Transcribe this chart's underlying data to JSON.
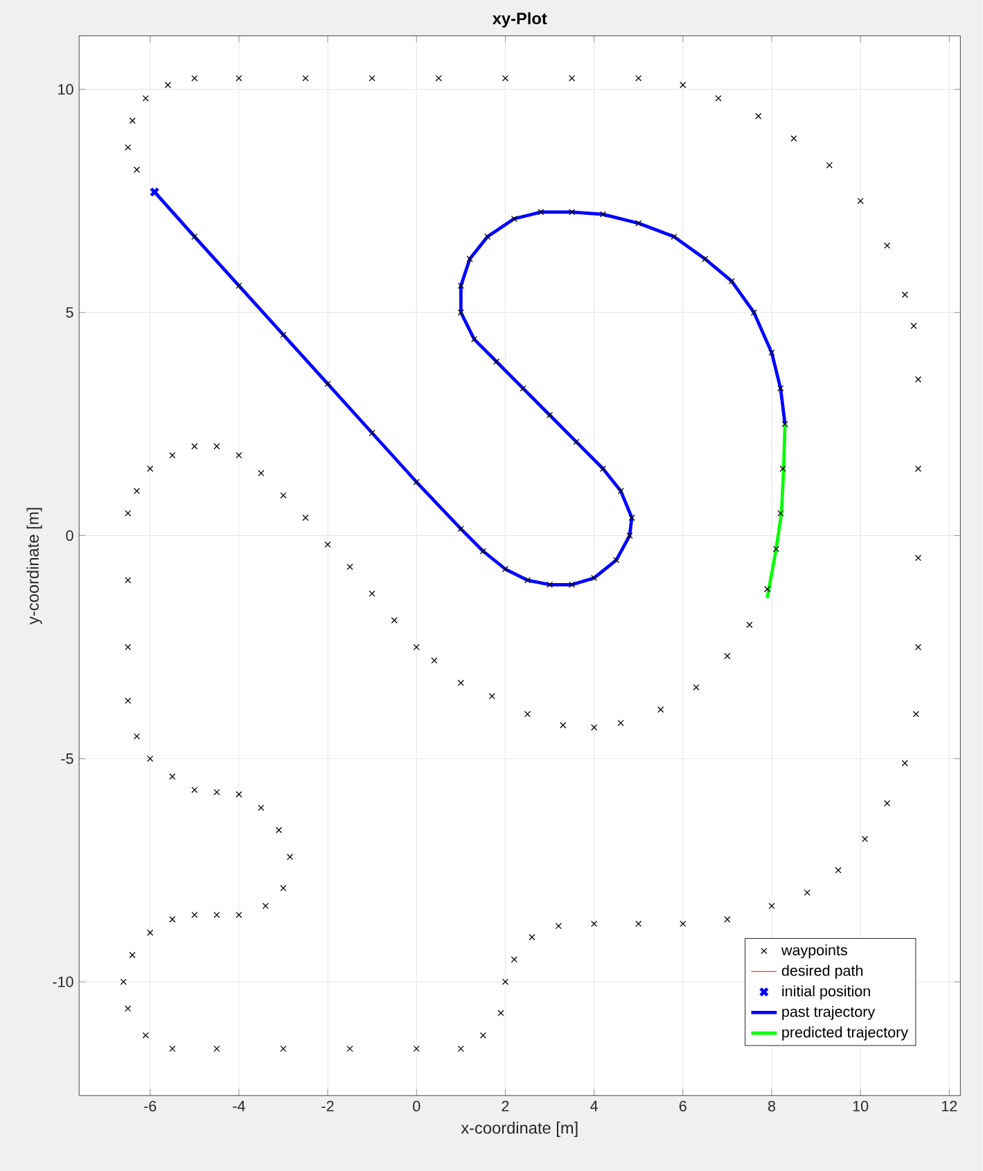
{
  "chart_data": {
    "type": "line",
    "title": "xy-Plot",
    "xlabel": "x-coordinate [m]",
    "ylabel": "y-coordinate [m]",
    "xlim": [
      -7.6,
      12.25
    ],
    "ylim": [
      -12.55,
      11.2
    ],
    "xticks": [
      -6,
      -4,
      -2,
      0,
      2,
      4,
      6,
      8,
      10,
      12
    ],
    "yticks": [
      -10,
      -5,
      0,
      5,
      10
    ],
    "grid": true,
    "legend": "bottom right",
    "series": [
      {
        "name": "waypoints",
        "type": "scatter",
        "marker": "cross",
        "color": "#000000",
        "x": [
          -5,
          -4,
          -3,
          -2,
          -1,
          0,
          1,
          1.5,
          2,
          2.5,
          3,
          3.5,
          4,
          4.5,
          4.8,
          4.85,
          4.6,
          4.2,
          3.6,
          3,
          2.4,
          1.8,
          1.3,
          1,
          1,
          1.2,
          1.6,
          2.2,
          2.8,
          3.5,
          4.2,
          5,
          5.8,
          6.5,
          7.1,
          7.6,
          8,
          8.2,
          8.3,
          8.25,
          8.2,
          8.1,
          7.9,
          7.5,
          7,
          6.3,
          5.5,
          4.6,
          4,
          3.3,
          2.5,
          1.7,
          1,
          0.4,
          0,
          -0.5,
          -1,
          -1.5,
          -2,
          -2.5,
          -3,
          -3.5,
          -4,
          -4.5,
          -5,
          -5.5,
          -6,
          -6.3,
          -6.5,
          -6.5,
          -6.5,
          -6.5,
          -6.3,
          -6,
          -5.5,
          -5,
          -4.5,
          -4,
          -3.5,
          -3.1,
          -2.85,
          -3,
          -3.4,
          -4,
          -4.5,
          -5,
          -5.5,
          -6,
          -6.4,
          -6.6,
          -6.5,
          -6.1,
          -5.5,
          -4.5,
          -3,
          -1.5,
          0,
          1,
          1.5,
          1.9,
          2,
          2.2,
          2.6,
          3.2,
          4,
          5,
          6,
          7,
          8,
          8.8,
          9.5,
          10.1,
          10.6,
          11,
          11.25,
          11.3,
          11.3,
          11.3,
          11.3,
          11.2,
          11,
          10.6,
          10,
          9.3,
          8.5,
          7.7,
          6.8,
          6,
          5,
          3.5,
          2,
          0.5,
          -1,
          -2.5,
          -4,
          -5,
          -5.6,
          -6.1,
          -6.4,
          -6.5,
          -6.3
        ],
        "values": [
          6.7,
          5.6,
          4.5,
          3.4,
          2.3,
          1.2,
          0.15,
          -0.35,
          -0.75,
          -1,
          -1.1,
          -1.1,
          -0.95,
          -0.55,
          0,
          0.4,
          1,
          1.5,
          2.1,
          2.7,
          3.3,
          3.9,
          4.4,
          5,
          5.6,
          6.2,
          6.7,
          7.1,
          7.25,
          7.25,
          7.2,
          7,
          6.7,
          6.2,
          5.7,
          5,
          4.1,
          3.3,
          2.5,
          1.5,
          0.5,
          -0.3,
          -1.2,
          -2,
          -2.7,
          -3.4,
          -3.9,
          -4.2,
          -4.3,
          -4.25,
          -4,
          -3.6,
          -3.3,
          -2.8,
          -2.5,
          -1.9,
          -1.3,
          -0.7,
          -0.2,
          0.4,
          0.9,
          1.4,
          1.8,
          2,
          2,
          1.8,
          1.5,
          1,
          0.5,
          -1,
          -2.5,
          -3.7,
          -4.5,
          -5,
          -5.4,
          -5.7,
          -5.75,
          -5.8,
          -6.1,
          -6.6,
          -7.2,
          -7.9,
          -8.3,
          -8.5,
          -8.5,
          -8.5,
          -8.6,
          -8.9,
          -9.4,
          -10,
          -10.6,
          -11.2,
          -11.5,
          -11.5,
          -11.5,
          -11.5,
          -11.5,
          -11.5,
          -11.2,
          -10.7,
          -10,
          -9.5,
          -9,
          -8.75,
          -8.7,
          -8.7,
          -8.7,
          -8.6,
          -8.3,
          -8,
          -7.5,
          -6.8,
          -6,
          -5.1,
          -4,
          -2.5,
          -0.5,
          1.5,
          3.5,
          4.7,
          5.4,
          6.5,
          7.5,
          8.3,
          8.9,
          9.4,
          9.8,
          10.1,
          10.25,
          10.25,
          10.25,
          10.25,
          10.25,
          10.25,
          10.25,
          10.25,
          10.1,
          9.8,
          9.3,
          8.7,
          8.2
        ]
      },
      {
        "name": "desired path",
        "color": "#ff0000",
        "line_style": "solid",
        "x": [
          null
        ],
        "values": [
          null
        ]
      },
      {
        "name": "initial position",
        "type": "scatter",
        "marker": "cross",
        "color": "#0000ff",
        "x": [
          -5.9
        ],
        "values": [
          7.7
        ]
      },
      {
        "name": "past trajectory",
        "color": "#0000ff",
        "line_style": "solid",
        "x": [
          -5.9,
          -5,
          -4,
          -3,
          -2,
          -1,
          0,
          1,
          1.5,
          2,
          2.5,
          3,
          3.5,
          4,
          4.5,
          4.8,
          4.85,
          4.6,
          4.2,
          3.6,
          3,
          2.4,
          1.8,
          1.3,
          1,
          1,
          1.2,
          1.6,
          2.2,
          2.8,
          3.5,
          4.2,
          5,
          5.8,
          6.5,
          7.1,
          7.6,
          8,
          8.2,
          8.3
        ],
        "values": [
          7.7,
          6.7,
          5.6,
          4.5,
          3.4,
          2.3,
          1.2,
          0.15,
          -0.35,
          -0.75,
          -1,
          -1.1,
          -1.1,
          -0.95,
          -0.55,
          0,
          0.4,
          1,
          1.5,
          2.1,
          2.7,
          3.3,
          3.9,
          4.4,
          5,
          5.6,
          6.2,
          6.7,
          7.1,
          7.25,
          7.25,
          7.2,
          7,
          6.7,
          6.2,
          5.7,
          5,
          4.1,
          3.3,
          2.5
        ]
      },
      {
        "name": "predicted trajectory",
        "color": "#00ff00",
        "line_style": "solid",
        "x": [
          8.3,
          8.27,
          8.22,
          8.1,
          7.9
        ],
        "values": [
          2.5,
          1.5,
          0.5,
          -0.3,
          -1.4
        ]
      }
    ]
  }
}
